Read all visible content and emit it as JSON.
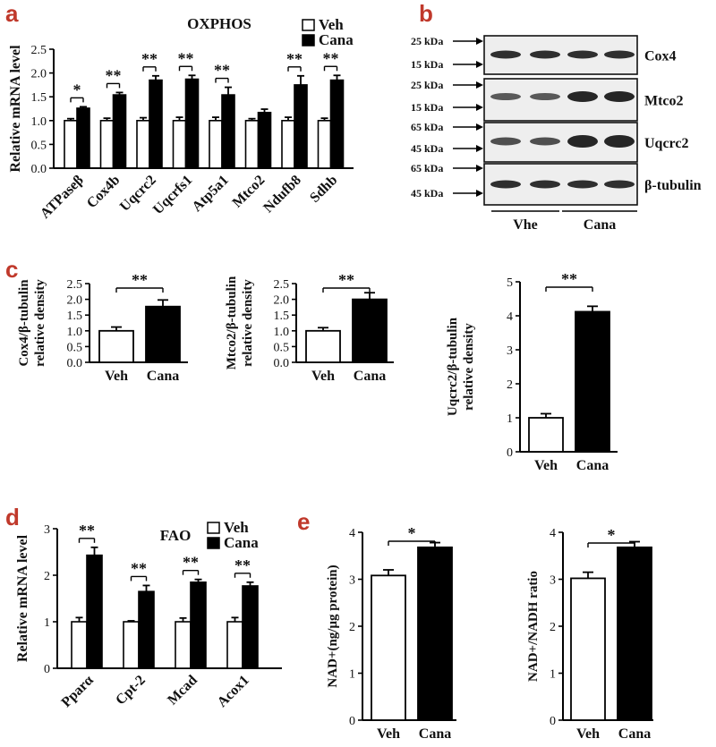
{
  "panel_letters": [
    "a",
    "b",
    "c",
    "d",
    "e"
  ],
  "colors": {
    "panel_letter": "#c0392b",
    "veh_fill": "#ffffff",
    "cana_fill": "#000000"
  },
  "chart_data": [
    {
      "id": "a",
      "type": "bar",
      "title": "OXPHOS",
      "ylabel": "Relative mRNA level",
      "ylim": [
        0,
        2.5
      ],
      "yticks": [
        "0.0",
        "0.5",
        "1.0",
        "1.5",
        "2.0",
        "2.5"
      ],
      "categories": [
        "ATPaseβ",
        "Cox4b",
        "Uqcrc2",
        "Uqcrfs1",
        "Atp5a1",
        "Mtco2",
        "Ndufb8",
        "Sdhb"
      ],
      "legend": [
        "Veh",
        "Cana"
      ],
      "series": [
        {
          "name": "Veh",
          "values": [
            1.0,
            1.0,
            1.0,
            1.0,
            1.0,
            1.0,
            1.0,
            1.0
          ],
          "errors": [
            0.04,
            0.05,
            0.06,
            0.07,
            0.07,
            0.04,
            0.07,
            0.05
          ]
        },
        {
          "name": "Cana",
          "values": [
            1.26,
            1.54,
            1.85,
            1.87,
            1.54,
            1.17,
            1.75,
            1.85
          ],
          "errors": [
            0.03,
            0.05,
            0.09,
            0.08,
            0.16,
            0.07,
            0.19,
            0.1
          ]
        }
      ],
      "significance": [
        "*",
        "**",
        "**",
        "**",
        "**",
        "",
        "**",
        "**"
      ]
    },
    {
      "id": "c1",
      "type": "bar",
      "ylabel": [
        "Cox4/β-tubulin",
        "relative density"
      ],
      "ylim": [
        0,
        2.5
      ],
      "yticks": [
        "0.0",
        "0.5",
        "1.0",
        "1.5",
        "2.0",
        "2.5"
      ],
      "categories": [
        "Veh",
        "Cana"
      ],
      "values": [
        1.0,
        1.77
      ],
      "errors": [
        0.12,
        0.21
      ],
      "significance": "**"
    },
    {
      "id": "c2",
      "type": "bar",
      "ylabel": [
        "Mtco2/β-tubulin",
        "relative density"
      ],
      "ylim": [
        0,
        2.5
      ],
      "yticks": [
        "0.0",
        "0.5",
        "1.0",
        "1.5",
        "2.0",
        "2.5"
      ],
      "categories": [
        "Veh",
        "Cana"
      ],
      "values": [
        1.0,
        2.0
      ],
      "errors": [
        0.1,
        0.21
      ],
      "significance": "**"
    },
    {
      "id": "c3",
      "type": "bar",
      "ylabel": [
        "Uqcrc2/β-tubulin",
        "relative density"
      ],
      "ylim": [
        0,
        5
      ],
      "yticks": [
        "0",
        "1",
        "2",
        "3",
        "4",
        "5"
      ],
      "categories": [
        "Veh",
        "Cana"
      ],
      "values": [
        1.0,
        4.12
      ],
      "errors": [
        0.12,
        0.16
      ],
      "significance": "**"
    },
    {
      "id": "d",
      "type": "bar",
      "title": "FAO",
      "ylabel": "Relative mRNA level",
      "ylim": [
        0,
        3
      ],
      "yticks": [
        "0",
        "1",
        "2",
        "3"
      ],
      "categories": [
        "Pparα",
        "Cpt-2",
        "Mcad",
        "Acox1"
      ],
      "legend": [
        "Veh",
        "Cana"
      ],
      "series": [
        {
          "name": "Veh",
          "values": [
            1.0,
            1.0,
            1.0,
            1.0
          ],
          "errors": [
            0.09,
            0.02,
            0.08,
            0.09
          ]
        },
        {
          "name": "Cana",
          "values": [
            2.43,
            1.65,
            1.85,
            1.77
          ],
          "errors": [
            0.17,
            0.13,
            0.06,
            0.08
          ]
        }
      ],
      "significance": [
        "**",
        "**",
        "**",
        "**"
      ]
    },
    {
      "id": "e1",
      "type": "bar",
      "ylabel": "NAD+(ng/μg protein)",
      "ylim": [
        0,
        4
      ],
      "yticks": [
        "0",
        "1",
        "2",
        "3",
        "4"
      ],
      "categories": [
        "Veh",
        "Cana"
      ],
      "values": [
        3.08,
        3.68
      ],
      "errors": [
        0.12,
        0.1
      ],
      "significance": "*"
    },
    {
      "id": "e2",
      "type": "bar",
      "ylabel": "NAD+/NADH ratio",
      "ylim": [
        0,
        4
      ],
      "yticks": [
        "0",
        "1",
        "2",
        "3",
        "4"
      ],
      "categories": [
        "Veh",
        "Cana"
      ],
      "values": [
        3.02,
        3.68
      ],
      "errors": [
        0.13,
        0.12
      ],
      "significance": "*"
    }
  ],
  "western_blot": {
    "proteins": [
      "Cox4",
      "Mtco2",
      "Uqcrc2",
      "β-tubulin"
    ],
    "markers": [
      "25 kDa",
      "15 kDa",
      "25 kDa",
      "15 kDa",
      "65 kDa",
      "45 kDa",
      "65 kDa",
      "45 kDa"
    ],
    "groups": [
      "Vhe",
      "Cana"
    ]
  }
}
